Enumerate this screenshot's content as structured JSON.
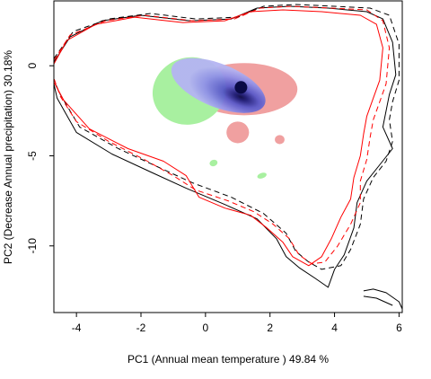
{
  "chart_data": {
    "type": "heatmap",
    "title": "",
    "xlabel": "PC1 (Annual mean temperature ) 49.84 %",
    "ylabel": "PC2 (Decrease Annual precipitation) 30.18%",
    "xlim": [
      -4.7,
      6.1
    ],
    "ylim": [
      -13.7,
      3.6
    ],
    "x_ticks": [
      -4,
      -2,
      0,
      2,
      4,
      6
    ],
    "y_ticks": [
      0,
      -5,
      -10
    ],
    "x_tick_labels": [
      "-4",
      "-2",
      "0",
      "2",
      "4",
      "6"
    ],
    "y_tick_labels": [
      "0",
      "-5",
      "-10"
    ],
    "grid": false,
    "legend": "none",
    "colors": {
      "red_density": "#f0a0a0",
      "green_density": "#a8f0a0",
      "blue_density_light": "#a8a8f0",
      "blue_density_core": "#0a0a46",
      "outline_red": "#ff0000",
      "outline_black": "#000000"
    },
    "density_patches": [
      {
        "color": "red",
        "center": [
          1.2,
          -1.3
        ],
        "size": [
          3.3,
          2.9
        ]
      },
      {
        "color": "red",
        "center": [
          1.0,
          -3.7
        ],
        "size": [
          0.7,
          1.2
        ]
      },
      {
        "color": "red",
        "center": [
          2.3,
          -4.1
        ],
        "size": [
          0.3,
          0.5
        ]
      },
      {
        "color": "green",
        "center": [
          -0.5,
          -1.4
        ],
        "size": [
          2.3,
          3.7
        ]
      },
      {
        "color": "green",
        "center": [
          0.25,
          -5.4
        ],
        "size": [
          0.25,
          0.35
        ]
      },
      {
        "color": "green",
        "center": [
          1.75,
          -6.1
        ],
        "size": [
          0.3,
          0.3
        ]
      },
      {
        "color": "blue",
        "center": [
          0.4,
          -1.1
        ],
        "size": [
          3.1,
          2.4
        ]
      }
    ],
    "density_peak": [
      1.1,
      -1.2
    ],
    "contour_lines": [
      {
        "color": "black",
        "style": "solid",
        "points": [
          [
            -4.7,
            0.2
          ],
          [
            -4.2,
            1.6
          ],
          [
            -3.2,
            2.5
          ],
          [
            -2.0,
            2.8
          ],
          [
            -0.5,
            2.5
          ],
          [
            0.8,
            2.6
          ],
          [
            1.6,
            3.2
          ],
          [
            2.6,
            3.3
          ],
          [
            3.8,
            3.2
          ],
          [
            5.0,
            3.0
          ],
          [
            5.5,
            2.6
          ],
          [
            5.8,
            1.3
          ],
          [
            5.9,
            -0.5
          ],
          [
            5.7,
            -1.6
          ],
          [
            5.6,
            -2.5
          ],
          [
            5.5,
            -3.4
          ],
          [
            5.8,
            -4.6
          ],
          [
            5.4,
            -5.5
          ],
          [
            5.0,
            -6.4
          ],
          [
            4.7,
            -7.6
          ],
          [
            4.6,
            -9.0
          ],
          [
            4.3,
            -10.5
          ],
          [
            4.0,
            -11.3
          ],
          [
            3.8,
            -12.3
          ],
          [
            3.4,
            -11.8
          ],
          [
            2.9,
            -11.2
          ],
          [
            2.5,
            -10.6
          ],
          [
            2.2,
            -9.6
          ],
          [
            1.6,
            -8.5
          ],
          [
            0.6,
            -7.7
          ],
          [
            -0.6,
            -6.8
          ],
          [
            -1.7,
            -5.9
          ],
          [
            -2.9,
            -4.9
          ],
          [
            -4.0,
            -3.7
          ],
          [
            -4.6,
            -1.8
          ],
          [
            -4.7,
            -1.0
          ]
        ]
      },
      {
        "color": "black",
        "style": "dashed",
        "points": [
          [
            -4.7,
            0.4
          ],
          [
            -4.1,
            1.9
          ],
          [
            -3.0,
            2.6
          ],
          [
            -1.7,
            2.9
          ],
          [
            -0.3,
            2.6
          ],
          [
            1.0,
            2.7
          ],
          [
            1.8,
            3.3
          ],
          [
            2.8,
            3.4
          ],
          [
            4.0,
            3.3
          ],
          [
            5.1,
            3.2
          ],
          [
            5.7,
            2.8
          ],
          [
            6.0,
            1.2
          ],
          [
            6.0,
            -0.8
          ],
          [
            5.8,
            -2.0
          ],
          [
            5.7,
            -3.0
          ],
          [
            5.8,
            -4.2
          ],
          [
            5.6,
            -5.3
          ],
          [
            5.2,
            -6.2
          ],
          [
            4.9,
            -7.4
          ],
          [
            4.8,
            -8.8
          ],
          [
            4.5,
            -10.2
          ],
          [
            4.2,
            -11.1
          ],
          [
            3.6,
            -11.3
          ],
          [
            3.2,
            -10.9
          ],
          [
            2.8,
            -10.3
          ],
          [
            2.5,
            -9.3
          ],
          [
            1.8,
            -8.2
          ],
          [
            0.8,
            -7.3
          ],
          [
            -0.4,
            -6.5
          ],
          [
            -1.5,
            -5.6
          ],
          [
            -2.7,
            -4.6
          ],
          [
            -3.9,
            -3.4
          ],
          [
            -4.5,
            -1.6
          ],
          [
            -4.7,
            -0.8
          ]
        ]
      },
      {
        "color": "red",
        "style": "solid",
        "points": [
          [
            -4.7,
            0.1
          ],
          [
            -4.3,
            1.4
          ],
          [
            -3.4,
            2.3
          ],
          [
            -2.2,
            2.7
          ],
          [
            -0.7,
            2.4
          ],
          [
            0.6,
            2.5
          ],
          [
            1.4,
            3.0
          ],
          [
            2.4,
            3.1
          ],
          [
            3.6,
            3.0
          ],
          [
            4.8,
            2.8
          ],
          [
            5.3,
            2.3
          ],
          [
            5.5,
            1.0
          ],
          [
            5.4,
            -0.8
          ],
          [
            5.2,
            -1.8
          ],
          [
            5.0,
            -2.8
          ],
          [
            4.9,
            -3.8
          ],
          [
            4.8,
            -5.0
          ],
          [
            4.6,
            -6.2
          ],
          [
            4.5,
            -7.4
          ],
          [
            4.2,
            -8.4
          ],
          [
            3.9,
            -9.6
          ],
          [
            3.6,
            -10.6
          ],
          [
            3.2,
            -11.1
          ],
          [
            2.7,
            -10.6
          ],
          [
            2.4,
            -9.8
          ],
          [
            1.9,
            -9.0
          ],
          [
            1.4,
            -8.3
          ],
          [
            0.6,
            -7.9
          ],
          [
            -0.2,
            -7.3
          ],
          [
            -0.6,
            -6.1
          ],
          [
            -1.3,
            -5.3
          ],
          [
            -2.4,
            -4.6
          ],
          [
            -3.6,
            -3.5
          ],
          [
            -4.4,
            -1.9
          ],
          [
            -4.7,
            -0.9
          ]
        ]
      },
      {
        "color": "red",
        "style": "dashed",
        "points": [
          [
            -4.7,
            0.3
          ],
          [
            -4.2,
            1.7
          ],
          [
            -3.1,
            2.5
          ],
          [
            -1.9,
            2.8
          ],
          [
            -0.4,
            2.5
          ],
          [
            0.9,
            2.6
          ],
          [
            1.7,
            3.2
          ],
          [
            2.7,
            3.3
          ],
          [
            3.9,
            3.2
          ],
          [
            5.0,
            3.1
          ],
          [
            5.5,
            2.5
          ],
          [
            5.7,
            1.0
          ],
          [
            5.6,
            -1.0
          ],
          [
            5.4,
            -2.0
          ],
          [
            5.2,
            -3.0
          ],
          [
            5.1,
            -4.0
          ],
          [
            5.0,
            -5.2
          ],
          [
            4.8,
            -6.4
          ],
          [
            4.8,
            -7.6
          ],
          [
            4.5,
            -8.8
          ],
          [
            4.1,
            -10.0
          ],
          [
            3.7,
            -10.9
          ],
          [
            3.3,
            -11.0
          ],
          [
            2.9,
            -10.5
          ],
          [
            2.6,
            -9.6
          ],
          [
            2.1,
            -8.8
          ],
          [
            1.5,
            -8.1
          ],
          [
            0.7,
            -7.5
          ],
          [
            -0.3,
            -6.9
          ],
          [
            -1.0,
            -6.1
          ],
          [
            -1.9,
            -5.2
          ],
          [
            -3.0,
            -4.2
          ],
          [
            -4.0,
            -3.1
          ],
          [
            -4.5,
            -1.7
          ],
          [
            -4.7,
            -0.7
          ]
        ]
      },
      {
        "color": "black",
        "style": "solid",
        "points": [
          [
            4.9,
            -12.5
          ],
          [
            5.2,
            -12.4
          ],
          [
            5.6,
            -12.6
          ],
          [
            6.0,
            -13.1
          ],
          [
            6.1,
            -13.5
          ]
        ]
      },
      {
        "color": "black",
        "style": "solid",
        "points": [
          [
            4.9,
            -12.8
          ],
          [
            5.3,
            -12.9
          ],
          [
            5.8,
            -13.3
          ]
        ]
      }
    ]
  }
}
